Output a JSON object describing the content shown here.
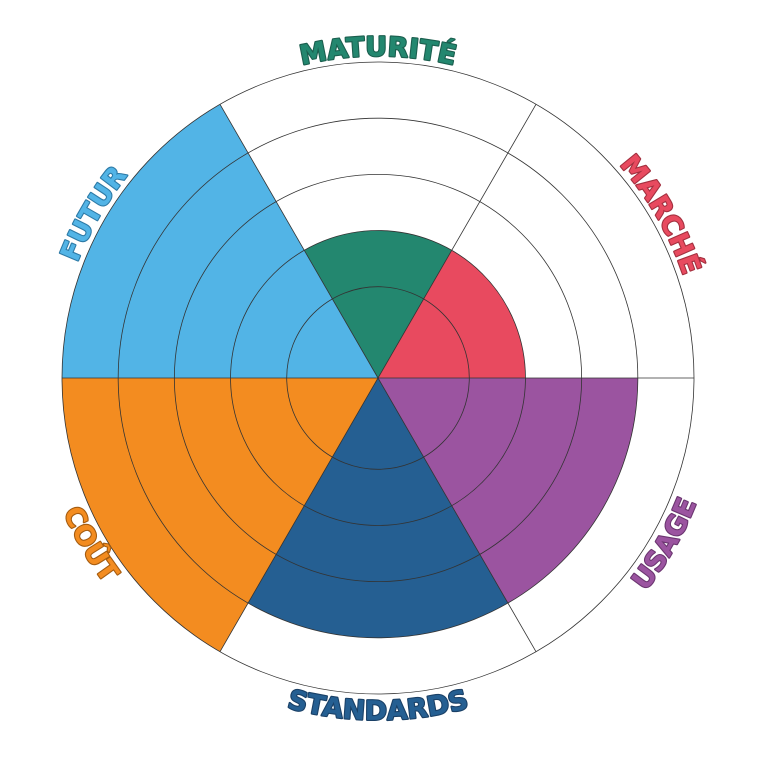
{
  "chart_data": {
    "type": "polar_area",
    "categories": [
      "MATURITÉ",
      "MARCHÉ",
      "USAGE",
      "STANDARDS",
      "COÛT",
      "FUTUR"
    ],
    "values": [
      2,
      2,
      4,
      4,
      5,
      5
    ],
    "colors": [
      "#23876f",
      "#e84a5f",
      "#9b54a0",
      "#255f92",
      "#f38c20",
      "#52b4e6"
    ],
    "label_outline": [
      "#1b5e4e",
      "#a3303f",
      "#6b3670",
      "#1a4066",
      "#a55c10",
      "#2d7aa6"
    ],
    "ylim": [
      -0.625,
      5
    ],
    "yticks": [
      1,
      2,
      3,
      4,
      5
    ],
    "grid": true
  }
}
